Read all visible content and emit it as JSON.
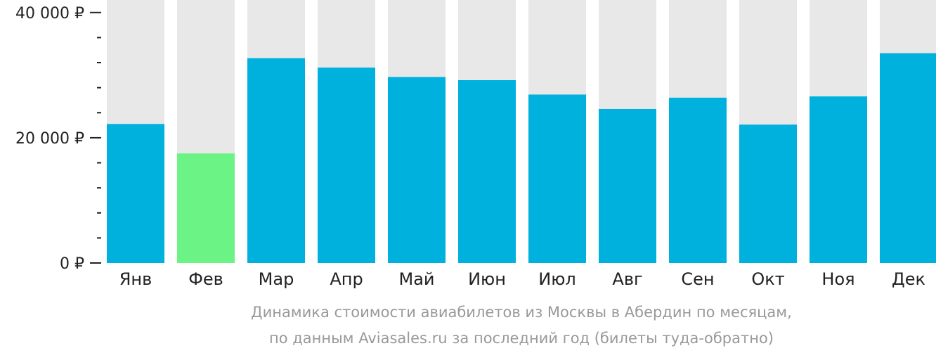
{
  "chart_data": {
    "type": "bar",
    "categories": [
      "Янв",
      "Фев",
      "Мар",
      "Апр",
      "Май",
      "Июн",
      "Июл",
      "Авг",
      "Сен",
      "Окт",
      "Ноя",
      "Дек"
    ],
    "values": [
      22200,
      17500,
      32700,
      31200,
      29700,
      29200,
      26900,
      24600,
      26400,
      22100,
      26600,
      33500
    ],
    "ylim": [
      0,
      42000
    ],
    "yticks": [
      {
        "value": 0,
        "label": "0 ₽"
      },
      {
        "value": 20000,
        "label": "20 000 ₽"
      },
      {
        "value": 40000,
        "label": "40 000 ₽"
      }
    ],
    "minor_tick_step": 4000,
    "colors": {
      "bar": "#00b0dd",
      "highlight": "#6cf386",
      "background_bar": "#e8e8e8",
      "axis": "#222222",
      "caption": "#999999"
    },
    "highlight_index": 1,
    "grid": false,
    "legend": "none",
    "caption": [
      "Динамика стоимости авиабилетов из Москвы в Абердин по месяцам,",
      "по данным Aviasales.ru за последний год (билеты туда-обратно)"
    ]
  }
}
